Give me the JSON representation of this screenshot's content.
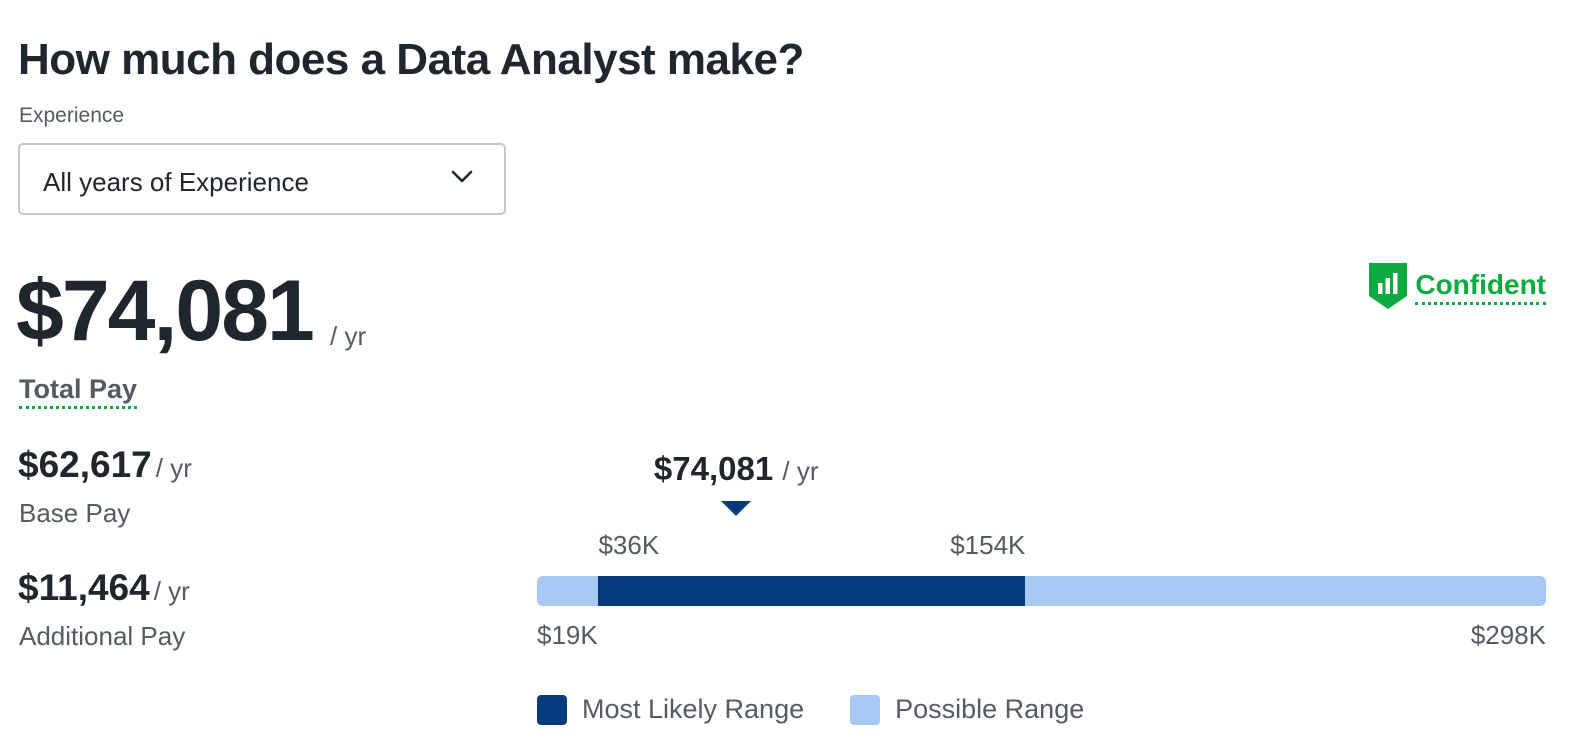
{
  "title": "How much does a Data Analyst make?",
  "filters": {
    "experience_label": "Experience",
    "experience_value": "All years of Experience"
  },
  "total_pay": {
    "amount": "$74,081",
    "unit": "/ yr",
    "label": "Total Pay"
  },
  "confidence": {
    "label": "Confident",
    "icon": "bar-chart-shield-icon",
    "color": "#0caa41"
  },
  "base_pay": {
    "amount": "$62,617",
    "unit": "/ yr",
    "label": "Base Pay"
  },
  "additional_pay": {
    "amount": "$11,464",
    "unit": "/ yr",
    "label": "Additional Pay"
  },
  "chart_data": {
    "type": "range-bar",
    "possible_range": {
      "min": 19,
      "max": 298,
      "min_label": "$19K",
      "max_label": "$298K"
    },
    "likely_range": {
      "low": 36,
      "high": 154,
      "low_label": "$36K",
      "high_label": "$154K"
    },
    "median": {
      "value": 74.081,
      "label": "$74,081",
      "unit": "/ yr"
    },
    "legend": [
      {
        "name": "Most Likely Range",
        "color": "#063b7e"
      },
      {
        "name": "Possible Range",
        "color": "#a9c9f5"
      }
    ]
  }
}
